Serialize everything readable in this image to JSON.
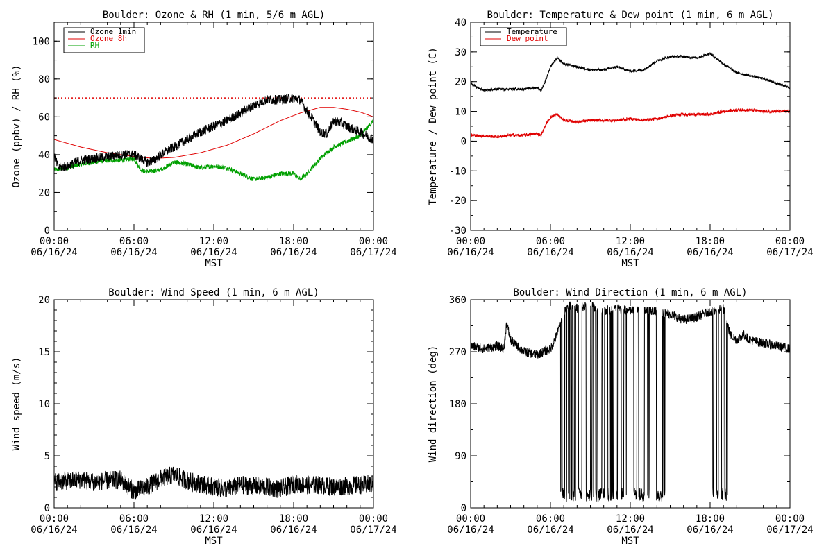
{
  "colors": {
    "black": "#000000",
    "red": "#e00000",
    "green": "#00a000"
  },
  "chart_data": [
    {
      "id": "ozone",
      "type": "line",
      "title": "Boulder: Ozone & RH (1 min, 5/6 m AGL)",
      "xlabel": "MST",
      "ylabel": "Ozone (ppbv) / RH (%)",
      "x_ticks": [
        {
          "h": 0,
          "time": "00:00",
          "date": "06/16/24"
        },
        {
          "h": 6,
          "time": "06:00",
          "date": "06/16/24"
        },
        {
          "h": 12,
          "time": "12:00",
          "date": "06/16/24"
        },
        {
          "h": 18,
          "time": "18:00",
          "date": "06/16/24"
        },
        {
          "h": 24,
          "time": "00:00",
          "date": "06/17/24"
        }
      ],
      "xlim": [
        0,
        24
      ],
      "ylim": [
        0,
        110
      ],
      "yticks": [
        0,
        20,
        40,
        60,
        80,
        100
      ],
      "ytick_labels": [
        "0",
        "20",
        "40",
        "60",
        "80",
        "100"
      ],
      "ref_line": {
        "y": 70,
        "style": "dotted",
        "color": "#e00000"
      },
      "legend": {
        "position": "top-left"
      },
      "series": [
        {
          "name": "Ozone 1min",
          "color": "#000000",
          "noise": 2.5,
          "points": [
            [
              0,
              40
            ],
            [
              0.3,
              33
            ],
            [
              1,
              34
            ],
            [
              2,
              37
            ],
            [
              3,
              38
            ],
            [
              4,
              39
            ],
            [
              5,
              40
            ],
            [
              6,
              40
            ],
            [
              6.5,
              38
            ],
            [
              7,
              36
            ],
            [
              7.5,
              37
            ],
            [
              8,
              40
            ],
            [
              9,
              44
            ],
            [
              10,
              48
            ],
            [
              11,
              52
            ],
            [
              12,
              55
            ],
            [
              13,
              58
            ],
            [
              14,
              62
            ],
            [
              15,
              66
            ],
            [
              16,
              69
            ],
            [
              17,
              69
            ],
            [
              18,
              70
            ],
            [
              18.5,
              69
            ],
            [
              19,
              63
            ],
            [
              19.5,
              58
            ],
            [
              20,
              52
            ],
            [
              20.5,
              51
            ],
            [
              21,
              58
            ],
            [
              21.5,
              57
            ],
            [
              22,
              55
            ],
            [
              23,
              52
            ],
            [
              24,
              48
            ]
          ]
        },
        {
          "name": "Ozone 8h",
          "color": "#e00000",
          "noise": 0,
          "points": [
            [
              0,
              48
            ],
            [
              2,
              44
            ],
            [
              4,
              41
            ],
            [
              6,
              39
            ],
            [
              7.5,
              38
            ],
            [
              9,
              38.5
            ],
            [
              11,
              41
            ],
            [
              13,
              45
            ],
            [
              15,
              51
            ],
            [
              17,
              58
            ],
            [
              18.5,
              62
            ],
            [
              20,
              65
            ],
            [
              21,
              65
            ],
            [
              22,
              64
            ],
            [
              23,
              62.5
            ],
            [
              24,
              60
            ]
          ]
        },
        {
          "name": "RH",
          "color": "#00a000",
          "noise": 1.2,
          "points": [
            [
              0,
              32
            ],
            [
              1,
              33
            ],
            [
              2,
              35
            ],
            [
              3,
              36
            ],
            [
              4,
              37
            ],
            [
              5,
              37
            ],
            [
              6,
              38
            ],
            [
              6.5,
              32
            ],
            [
              7,
              31
            ],
            [
              8,
              32
            ],
            [
              9,
              36
            ],
            [
              10,
              35
            ],
            [
              11,
              33
            ],
            [
              12,
              34
            ],
            [
              13,
              33
            ],
            [
              14,
              30
            ],
            [
              15,
              27
            ],
            [
              16,
              28
            ],
            [
              17,
              30
            ],
            [
              18,
              30
            ],
            [
              18.5,
              27
            ],
            [
              19,
              30
            ],
            [
              20,
              38
            ],
            [
              21,
              44
            ],
            [
              22,
              47
            ],
            [
              23,
              50
            ],
            [
              24,
              58
            ]
          ]
        }
      ]
    },
    {
      "id": "temp",
      "type": "line",
      "title": "Boulder: Temperature & Dew point (1 min, 6 m AGL)",
      "xlabel": "MST",
      "ylabel": "Temperature / Dew point (C)",
      "x_ticks": [
        {
          "h": 0,
          "time": "00:00",
          "date": "06/16/24"
        },
        {
          "h": 6,
          "time": "06:00",
          "date": "06/16/24"
        },
        {
          "h": 12,
          "time": "12:00",
          "date": "06/16/24"
        },
        {
          "h": 18,
          "time": "18:00",
          "date": "06/16/24"
        },
        {
          "h": 24,
          "time": "00:00",
          "date": "06/17/24"
        }
      ],
      "xlim": [
        0,
        24
      ],
      "ylim": [
        -30,
        40
      ],
      "yticks": [
        -30,
        -20,
        -10,
        0,
        10,
        20,
        30,
        40
      ],
      "ytick_labels": [
        "-30",
        "-20",
        "-10",
        "0",
        "10",
        "20",
        "30",
        "40"
      ],
      "legend": {
        "position": "top-left"
      },
      "series": [
        {
          "name": "Temperature",
          "color": "#000000",
          "noise": 0.4,
          "points": [
            [
              0,
              19.5
            ],
            [
              0.5,
              18
            ],
            [
              1,
              17
            ],
            [
              2,
              17.5
            ],
            [
              3,
              17.5
            ],
            [
              4,
              17.5
            ],
            [
              5,
              18
            ],
            [
              5.3,
              17
            ],
            [
              5.6,
              20
            ],
            [
              6,
              25
            ],
            [
              6.5,
              28
            ],
            [
              7,
              26
            ],
            [
              8,
              25
            ],
            [
              9,
              24
            ],
            [
              10,
              24
            ],
            [
              11,
              25
            ],
            [
              12,
              23.5
            ],
            [
              13,
              24
            ],
            [
              14,
              27
            ],
            [
              15,
              28.5
            ],
            [
              16,
              28.5
            ],
            [
              17,
              28
            ],
            [
              18,
              29.5
            ],
            [
              19,
              26
            ],
            [
              20,
              23
            ],
            [
              21,
              22
            ],
            [
              22,
              21
            ],
            [
              23,
              19.5
            ],
            [
              24,
              18
            ]
          ]
        },
        {
          "name": "Dew point",
          "color": "#e00000",
          "noise": 0.5,
          "points": [
            [
              0,
              2
            ],
            [
              2,
              1.5
            ],
            [
              3,
              2
            ],
            [
              4,
              2
            ],
            [
              5,
              2.5
            ],
            [
              5.3,
              2
            ],
            [
              5.7,
              6
            ],
            [
              6,
              8
            ],
            [
              6.5,
              9
            ],
            [
              7,
              7
            ],
            [
              8,
              6.5
            ],
            [
              9,
              7
            ],
            [
              10,
              7
            ],
            [
              11,
              7
            ],
            [
              12,
              7.5
            ],
            [
              13,
              7
            ],
            [
              14,
              7.5
            ],
            [
              15,
              8.5
            ],
            [
              16,
              9
            ],
            [
              17,
              9
            ],
            [
              18,
              9
            ],
            [
              19,
              10
            ],
            [
              20,
              10.5
            ],
            [
              21,
              10.5
            ],
            [
              22,
              10
            ],
            [
              23,
              10
            ],
            [
              24,
              10
            ]
          ]
        }
      ]
    },
    {
      "id": "wspd",
      "type": "line",
      "title": "Boulder: Wind Speed (1 min, 6 m AGL)",
      "xlabel": "MST",
      "ylabel": "Wind speed (m/s)",
      "x_ticks": [
        {
          "h": 0,
          "time": "00:00",
          "date": "06/16/24"
        },
        {
          "h": 6,
          "time": "06:00",
          "date": "06/16/24"
        },
        {
          "h": 12,
          "time": "12:00",
          "date": "06/16/24"
        },
        {
          "h": 18,
          "time": "18:00",
          "date": "06/16/24"
        },
        {
          "h": 24,
          "time": "00:00",
          "date": "06/17/24"
        }
      ],
      "xlim": [
        0,
        24
      ],
      "ylim": [
        0,
        20
      ],
      "yticks": [
        0,
        5,
        10,
        15,
        20
      ],
      "ytick_labels": [
        "0",
        "5",
        "10",
        "15",
        "20"
      ],
      "series": [
        {
          "name": "",
          "color": "#000000",
          "noise": 0.9,
          "points": [
            [
              0,
              2.5
            ],
            [
              1,
              2.6
            ],
            [
              2,
              2.7
            ],
            [
              3,
              2.5
            ],
            [
              4,
              2.6
            ],
            [
              5,
              2.7
            ],
            [
              6,
              1.6
            ],
            [
              7,
              2
            ],
            [
              8,
              2.8
            ],
            [
              9,
              3.2
            ],
            [
              10,
              2.6
            ],
            [
              11,
              2.3
            ],
            [
              12,
              2
            ],
            [
              13,
              1.8
            ],
            [
              14,
              2.2
            ],
            [
              15,
              2.1
            ],
            [
              16,
              2
            ],
            [
              17,
              1.8
            ],
            [
              18,
              2.3
            ],
            [
              19,
              2.2
            ],
            [
              20,
              2.2
            ],
            [
              21,
              2
            ],
            [
              22,
              2.1
            ],
            [
              23,
              2.2
            ],
            [
              24,
              2.3
            ]
          ]
        }
      ]
    },
    {
      "id": "wdir",
      "type": "line",
      "title": "Boulder: Wind Direction (1 min, 6 m AGL)",
      "xlabel": "MST",
      "ylabel": "Wind direction (deg)",
      "x_ticks": [
        {
          "h": 0,
          "time": "00:00",
          "date": "06/16/24"
        },
        {
          "h": 6,
          "time": "06:00",
          "date": "06/16/24"
        },
        {
          "h": 12,
          "time": "12:00",
          "date": "06/16/24"
        },
        {
          "h": 18,
          "time": "18:00",
          "date": "06/16/24"
        },
        {
          "h": 24,
          "time": "00:00",
          "date": "06/17/24"
        }
      ],
      "xlim": [
        0,
        24
      ],
      "ylim": [
        0,
        360
      ],
      "yticks": [
        0,
        90,
        180,
        270,
        360
      ],
      "ytick_labels": [
        "0",
        "90",
        "180",
        "270",
        "360"
      ],
      "series": [
        {
          "name": "",
          "color": "#000000",
          "noise": 8,
          "points": [
            [
              0,
              280
            ],
            [
              1,
              275
            ],
            [
              2,
              280
            ],
            [
              2.5,
              275
            ],
            [
              2.7,
              320
            ],
            [
              3,
              290
            ],
            [
              4,
              270
            ],
            [
              5,
              265
            ],
            [
              6,
              275
            ],
            [
              6.5,
              300
            ],
            [
              7,
              340
            ],
            [
              7.5,
              350
            ],
            [
              8,
              345
            ],
            [
              9,
              350
            ],
            [
              10,
              340
            ],
            [
              11,
              345
            ],
            [
              12,
              340
            ],
            [
              13,
              345
            ],
            [
              14,
              340
            ],
            [
              15,
              335
            ],
            [
              16,
              325
            ],
            [
              17,
              330
            ],
            [
              18,
              340
            ],
            [
              19,
              345
            ],
            [
              19.5,
              300
            ],
            [
              20,
              290
            ],
            [
              20.5,
              300
            ],
            [
              21,
              290
            ],
            [
              22,
              285
            ],
            [
              23,
              280
            ],
            [
              24,
              275
            ]
          ],
          "wrap_ranges": [
            [
              6.7,
              14.6
            ],
            [
              18.2,
              19.3
            ]
          ]
        }
      ]
    }
  ]
}
